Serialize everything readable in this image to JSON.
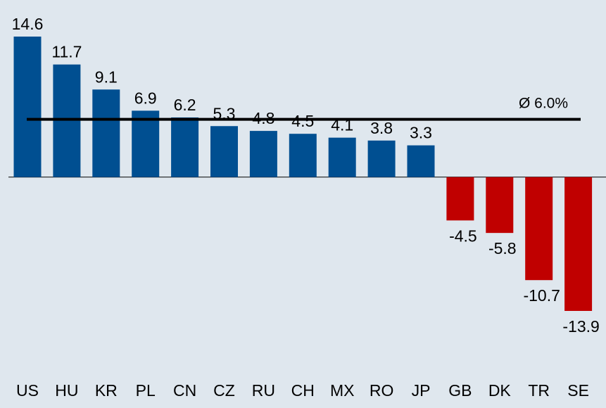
{
  "chart_data": {
    "type": "bar",
    "categories": [
      "US",
      "HU",
      "KR",
      "PL",
      "CN",
      "CZ",
      "RU",
      "CH",
      "MX",
      "RO",
      "JP",
      "GB",
      "DK",
      "TR",
      "SE"
    ],
    "values": [
      14.6,
      11.7,
      9.1,
      6.9,
      6.2,
      5.3,
      4.8,
      4.5,
      4.1,
      3.8,
      3.3,
      -4.5,
      -5.8,
      -10.7,
      -13.9
    ],
    "positive_color": "#004f91",
    "negative_color": "#c00000",
    "reference_line": {
      "value": 6.0,
      "label": "Ø 6.0%"
    }
  }
}
